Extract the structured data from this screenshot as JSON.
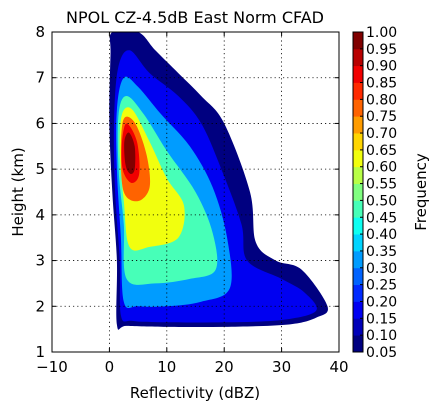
{
  "chart_data": {
    "type": "heatmap",
    "title": "NPOL CZ-4.5dB East Norm CFAD",
    "xlabel": "Reflectivity (dBZ)",
    "ylabel": "Height (km)",
    "xlim": [
      -10,
      40
    ],
    "ylim": [
      1,
      8
    ],
    "xticks": [
      "−10",
      "0",
      "10",
      "20",
      "30",
      "40"
    ],
    "xtick_values": [
      -10,
      0,
      10,
      20,
      30,
      40
    ],
    "yticks": [
      "1",
      "2",
      "3",
      "4",
      "5",
      "6",
      "7",
      "8"
    ],
    "ytick_values": [
      1,
      2,
      3,
      4,
      5,
      6,
      7,
      8
    ],
    "grid": true,
    "colormap": "jet",
    "colorbar": {
      "label": "Frequency",
      "levels": [
        0.05,
        0.1,
        0.15,
        0.2,
        0.25,
        0.3,
        0.35,
        0.4,
        0.45,
        0.5,
        0.55,
        0.6,
        0.65,
        0.7,
        0.75,
        0.8,
        0.85,
        0.9,
        0.95,
        1.0
      ],
      "tick_labels": [
        "0.05",
        "0.10",
        "0.15",
        "0.20",
        "0.25",
        "0.30",
        "0.35",
        "0.40",
        "0.45",
        "0.50",
        "0.55",
        "0.60",
        "0.65",
        "0.70",
        "0.75",
        "0.80",
        "0.85",
        "0.90",
        "0.95",
        "1.00"
      ]
    },
    "approx_contours": [
      {
        "level": 0.05,
        "points": [
          [
            1.3,
            1.6
          ],
          [
            1.3,
            3.0
          ],
          [
            0.5,
            4.5
          ],
          [
            0,
            6.0
          ],
          [
            0.2,
            7.5
          ],
          [
            0.5,
            8.0
          ],
          [
            5.0,
            8.0
          ],
          [
            8.0,
            7.6
          ],
          [
            12.0,
            7.1
          ],
          [
            16.0,
            6.6
          ],
          [
            20.0,
            6.0
          ],
          [
            24.5,
            4.5
          ],
          [
            25.5,
            3.4
          ],
          [
            29.0,
            3.0
          ],
          [
            33.5,
            2.8
          ],
          [
            38.0,
            2.0
          ],
          [
            36.0,
            1.75
          ],
          [
            31.0,
            1.6
          ],
          [
            20.0,
            1.55
          ],
          [
            10.0,
            1.55
          ],
          [
            3.0,
            1.57
          ]
        ]
      },
      {
        "level": 0.15,
        "points": [
          [
            2.0,
            1.8
          ],
          [
            1.8,
            3.0
          ],
          [
            1.0,
            4.5
          ],
          [
            0.8,
            6.0
          ],
          [
            1.5,
            7.2
          ],
          [
            3.5,
            7.6
          ],
          [
            7.0,
            7.1
          ],
          [
            12.0,
            6.6
          ],
          [
            16.0,
            6.0
          ],
          [
            19.5,
            5.0
          ],
          [
            23.0,
            3.8
          ],
          [
            24.0,
            3.0
          ],
          [
            30.0,
            2.6
          ],
          [
            34.0,
            2.3
          ],
          [
            36.0,
            1.9
          ],
          [
            30.0,
            1.7
          ],
          [
            20.0,
            1.65
          ],
          [
            10.0,
            1.65
          ],
          [
            4.0,
            1.68
          ]
        ]
      },
      {
        "level": 0.3,
        "points": [
          [
            2.5,
            2.1
          ],
          [
            2.0,
            3.5
          ],
          [
            1.3,
            5.0
          ],
          [
            1.3,
            6.3
          ],
          [
            2.5,
            7.0
          ],
          [
            5.0,
            6.8
          ],
          [
            9.0,
            6.2
          ],
          [
            14.0,
            5.5
          ],
          [
            18.0,
            4.6
          ],
          [
            20.5,
            3.5
          ],
          [
            21.0,
            2.4
          ],
          [
            16.0,
            2.1
          ],
          [
            10.0,
            2.0
          ],
          [
            5.0,
            2.0
          ]
        ]
      },
      {
        "level": 0.45,
        "points": [
          [
            3.0,
            2.6
          ],
          [
            2.5,
            3.8
          ],
          [
            1.6,
            5.0
          ],
          [
            1.6,
            6.2
          ],
          [
            3.0,
            6.6
          ],
          [
            6.0,
            6.2
          ],
          [
            10.0,
            5.4
          ],
          [
            15.0,
            4.5
          ],
          [
            18.0,
            3.6
          ],
          [
            18.5,
            2.8
          ],
          [
            14.0,
            2.6
          ],
          [
            8.0,
            2.5
          ]
        ]
      },
      {
        "level": 0.6,
        "points": [
          [
            3.5,
            3.3
          ],
          [
            2.5,
            4.3
          ],
          [
            1.8,
            5.4
          ],
          [
            2.2,
            6.2
          ],
          [
            4.0,
            6.3
          ],
          [
            7.0,
            5.6
          ],
          [
            10.0,
            4.8
          ],
          [
            13.0,
            4.2
          ],
          [
            12.0,
            3.5
          ],
          [
            7.0,
            3.3
          ]
        ]
      },
      {
        "level": 0.75,
        "points": [
          [
            2.5,
            4.5
          ],
          [
            2.0,
            5.4
          ],
          [
            2.5,
            6.1
          ],
          [
            4.5,
            6.0
          ],
          [
            6.5,
            5.3
          ],
          [
            7.0,
            4.6
          ],
          [
            5.0,
            4.3
          ]
        ]
      },
      {
        "level": 0.85,
        "points": [
          [
            2.3,
            5.0
          ],
          [
            2.2,
            5.6
          ],
          [
            3.0,
            6.0
          ],
          [
            4.8,
            5.6
          ],
          [
            5.2,
            4.9
          ],
          [
            3.8,
            4.7
          ]
        ]
      },
      {
        "level": 0.95,
        "points": [
          [
            2.8,
            5.1
          ],
          [
            2.6,
            5.6
          ],
          [
            3.4,
            5.8
          ],
          [
            4.4,
            5.5
          ],
          [
            4.4,
            5.0
          ],
          [
            3.6,
            4.9
          ]
        ]
      }
    ]
  }
}
